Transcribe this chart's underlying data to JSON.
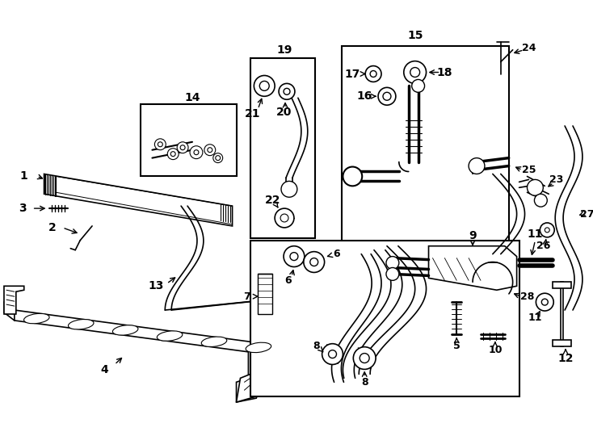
{
  "bg_color": "#ffffff",
  "line_color": "#000000",
  "lw_main": 1.2,
  "lw_thick": 2.0,
  "lw_pipe": 2.5,
  "label_fs": 10,
  "label_fs_sm": 9
}
